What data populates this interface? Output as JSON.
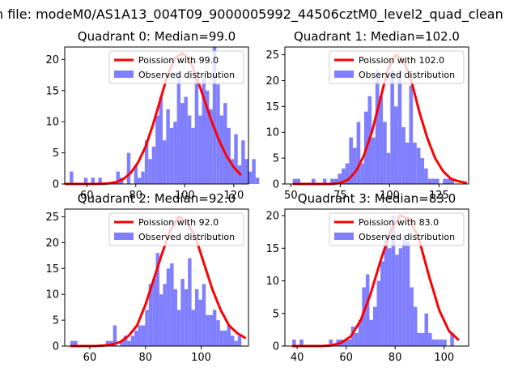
{
  "figure": {
    "suptitle": "n file: modeM0/AS1A13_004T09_9000005992_44506cztM0_level2_quad_clean",
    "colors": {
      "poisson": "#ff0000",
      "observed": "#7f7fff"
    }
  },
  "chart_data": [
    {
      "type": "bar",
      "title": "Quadrant 0: Median=99.0",
      "xlim": [
        51,
        126
      ],
      "ylim": [
        0,
        22
      ],
      "xticks": [
        60,
        80,
        100,
        120
      ],
      "yticks": [
        0,
        5,
        10,
        15,
        20
      ],
      "legend": {
        "placement": "top-right",
        "entries": [
          "Poission with 99.0",
          "Observed distribution"
        ]
      },
      "hist": {
        "start": 53,
        "bin_width": 1.46,
        "counts": [
          2,
          0,
          0,
          0,
          1,
          0,
          1,
          0,
          1,
          0,
          0,
          0,
          0,
          2,
          1,
          0,
          5,
          0,
          3,
          1,
          2,
          7,
          4,
          6,
          11,
          14,
          7,
          12,
          9,
          10,
          18,
          13,
          14,
          11,
          9,
          17,
          11,
          17,
          15,
          12,
          22,
          16,
          11,
          13,
          9,
          4,
          8,
          3,
          7,
          4,
          2,
          4,
          1
        ]
      },
      "poisson": {
        "x": [
          51,
          54,
          57,
          60,
          63,
          66,
          69,
          72,
          75,
          78,
          81,
          84,
          87,
          90,
          93,
          96,
          99,
          102,
          105,
          108,
          111,
          114,
          117,
          120,
          123
        ],
        "y": [
          0,
          0,
          0,
          0,
          0,
          0.02,
          0.1,
          0.3,
          0.8,
          1.8,
          3.5,
          6,
          9.5,
          13.5,
          17.5,
          20.2,
          21,
          20,
          17,
          13.5,
          10,
          7,
          4.5,
          2.7,
          1.4
        ]
      }
    },
    {
      "type": "bar",
      "title": "Quadrant 1: Median=102.0",
      "xlim": [
        47,
        140
      ],
      "ylim": [
        0,
        26.5
      ],
      "xticks": [
        50,
        75,
        100,
        125
      ],
      "yticks": [
        0,
        5,
        10,
        15,
        20,
        25
      ],
      "legend": {
        "placement": "top-right",
        "entries": [
          "Poission with 102.0",
          "Observed distribution"
        ]
      },
      "hist": {
        "start": 51,
        "bin_width": 1.9,
        "counts": [
          1,
          1,
          0,
          0,
          0,
          1,
          0,
          0,
          1,
          0,
          1,
          1,
          2,
          3,
          4,
          9,
          7,
          12,
          4,
          14,
          17,
          9,
          22,
          17,
          12,
          6,
          22,
          15,
          22,
          11,
          8,
          19,
          8,
          7,
          5,
          3,
          1,
          1,
          1,
          0,
          1,
          1,
          1
        ]
      },
      "poisson": {
        "x": [
          51,
          55,
          59,
          63,
          67,
          71,
          75,
          79,
          83,
          87,
          91,
          95,
          99,
          103,
          107,
          111,
          115,
          119,
          123,
          127,
          131,
          135,
          139
        ],
        "y": [
          0,
          0,
          0,
          0,
          0,
          0.02,
          0.2,
          0.8,
          2.5,
          5.5,
          10,
          16,
          22,
          25,
          24,
          20,
          14,
          9,
          5,
          2.5,
          1,
          0.5,
          0.2
        ]
      }
    },
    {
      "type": "bar",
      "title": "Quadrant 2: Median=92.0",
      "xlim": [
        51,
        117
      ],
      "ylim": [
        0,
        26.5
      ],
      "xticks": [
        60,
        80,
        100
      ],
      "yticks": [
        0,
        5,
        10,
        15,
        20,
        25
      ],
      "legend": {
        "placement": "top-right",
        "entries": [
          "Poission with 92.0",
          "Observed distribution"
        ]
      },
      "hist": {
        "start": 53,
        "bin_width": 1.28,
        "counts": [
          1,
          1,
          0,
          0,
          0,
          0,
          0,
          0,
          0,
          0,
          1,
          1,
          4,
          0,
          1,
          2,
          1,
          2,
          3,
          4,
          4,
          7,
          12,
          13,
          18,
          10,
          12,
          15,
          16,
          11,
          7,
          13,
          11,
          17,
          7,
          11,
          9,
          12,
          6,
          6,
          7,
          5,
          3,
          3,
          4,
          2,
          1,
          2
        ]
      },
      "poisson": {
        "x": [
          53,
          56,
          59,
          62,
          65,
          68,
          71,
          74,
          77,
          80,
          83,
          86,
          89,
          92,
          95,
          98,
          101,
          104,
          107,
          110,
          113,
          116
        ],
        "y": [
          0,
          0,
          0,
          0,
          0.1,
          0.3,
          0.8,
          2,
          4,
          8,
          13,
          18,
          22.5,
          25,
          24,
          21,
          16,
          11,
          7,
          4,
          2.5,
          1.5
        ]
      }
    },
    {
      "type": "bar",
      "title": "Quadrant 3: Median=83.0",
      "xlim": [
        35,
        110
      ],
      "ylim": [
        0,
        21
      ],
      "xticks": [
        40,
        60,
        80,
        100
      ],
      "yticks": [
        0,
        5,
        10,
        15,
        20
      ],
      "legend": {
        "placement": "top-right",
        "entries": [
          "Poission with 83.0",
          "Observed distribution"
        ]
      },
      "hist": {
        "start": 38,
        "bin_width": 1.5,
        "counts": [
          1,
          0,
          1,
          0,
          0,
          0,
          0,
          0,
          0,
          0,
          1,
          0,
          1,
          1,
          1,
          1,
          3,
          2,
          4,
          9,
          11,
          4,
          6,
          10,
          13,
          17,
          15,
          20,
          14,
          15,
          17,
          16,
          9,
          6,
          2,
          2,
          5,
          2,
          1,
          1,
          1,
          1,
          0,
          2
        ]
      },
      "poisson": {
        "x": [
          38,
          42,
          46,
          50,
          54,
          58,
          62,
          66,
          70,
          74,
          78,
          82,
          86,
          90,
          94,
          98,
          102,
          106
        ],
        "y": [
          0,
          0,
          0,
          0,
          0.1,
          0.5,
          1.5,
          4,
          8,
          13,
          17.5,
          20,
          19.5,
          16,
          10.5,
          5.5,
          2.3,
          0.9
        ]
      }
    }
  ]
}
